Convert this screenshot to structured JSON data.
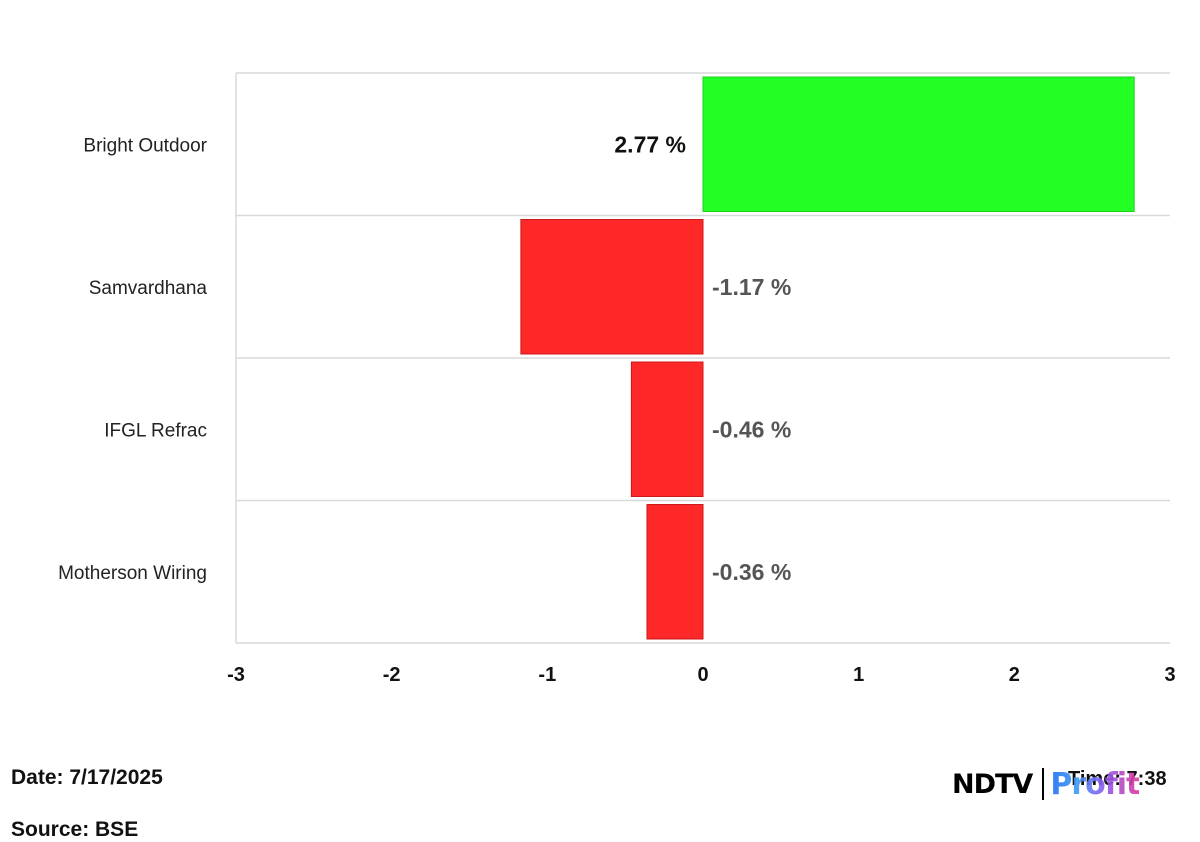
{
  "chart_data": {
    "type": "bar",
    "orientation": "horizontal",
    "categories": [
      "Bright Outdoor",
      "Samvardhana",
      "IFGL Refrac",
      "Motherson Wiring"
    ],
    "values": [
      2.77,
      -1.17,
      -0.46,
      -0.36
    ],
    "data_labels": [
      "2.77 %",
      "-1.17 %",
      "-0.46 %",
      "-0.36 %"
    ],
    "xlim": [
      -3,
      3
    ],
    "x_ticks": [
      "-3",
      "-2",
      "-1",
      "0",
      "1",
      "2",
      "3"
    ],
    "title": "",
    "xlabel": "",
    "ylabel": "",
    "grid": true,
    "colors": {
      "positive": "#22ff22",
      "negative": "#ff2828",
      "positive_border": "#1fcf1f",
      "negative_border": "#cc1a1a",
      "grid": "#d9d9d9",
      "axis_label": "#111111",
      "category_label": "#222222",
      "positive_label": "#111111",
      "negative_label": "#555555"
    }
  },
  "footer": {
    "date": "Date: 7/17/2025",
    "source": "Source: BSE",
    "time": "Time: 7:38"
  },
  "logo": {
    "ndtv": "NDTV",
    "profit": "Profit"
  }
}
